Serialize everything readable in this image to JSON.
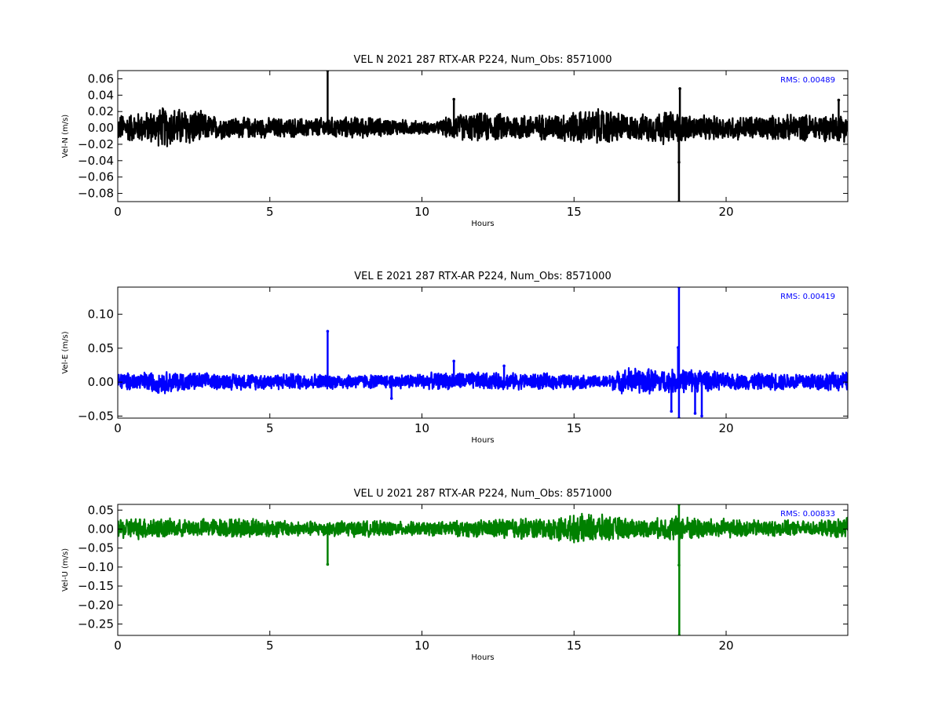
{
  "chart_data": [
    {
      "type": "line",
      "title": "VEL N 2021 287 RTX-AR  P224, Num_Obs: 8571000",
      "xlabel": "Hours",
      "ylabel": "Vel-N (m/s)",
      "xlim": [
        0,
        24
      ],
      "ylim": [
        -0.09,
        0.07
      ],
      "xticks": [
        0,
        5,
        10,
        15,
        20
      ],
      "yticks": [
        -0.08,
        -0.06,
        -0.04,
        -0.02,
        0.0,
        0.02,
        0.04,
        0.06
      ],
      "ytick_labels": [
        "−0.08",
        "−0.06",
        "−0.04",
        "−0.02",
        "0.00",
        "0.02",
        "0.04",
        "0.06"
      ],
      "color": "#000000",
      "rms_text": "RMS:  0.00489",
      "rms_color": "#0000ff",
      "grid": false,
      "envelope": [
        {
          "x": 0.0,
          "lo": -0.018,
          "hi": 0.018
        },
        {
          "x": 1.0,
          "lo": -0.02,
          "hi": 0.022
        },
        {
          "x": 1.5,
          "lo": -0.026,
          "hi": 0.028
        },
        {
          "x": 2.5,
          "lo": -0.024,
          "hi": 0.026
        },
        {
          "x": 3.0,
          "lo": -0.016,
          "hi": 0.017
        },
        {
          "x": 4.0,
          "lo": -0.014,
          "hi": 0.014
        },
        {
          "x": 6.0,
          "lo": -0.013,
          "hi": 0.013
        },
        {
          "x": 8.0,
          "lo": -0.014,
          "hi": 0.015
        },
        {
          "x": 9.0,
          "lo": -0.01,
          "hi": 0.012
        },
        {
          "x": 10.5,
          "lo": -0.008,
          "hi": 0.008
        },
        {
          "x": 11.0,
          "lo": -0.016,
          "hi": 0.018
        },
        {
          "x": 12.0,
          "lo": -0.018,
          "hi": 0.02
        },
        {
          "x": 14.0,
          "lo": -0.016,
          "hi": 0.018
        },
        {
          "x": 16.0,
          "lo": -0.024,
          "hi": 0.026
        },
        {
          "x": 17.0,
          "lo": -0.016,
          "hi": 0.016
        },
        {
          "x": 18.0,
          "lo": -0.022,
          "hi": 0.024
        },
        {
          "x": 19.0,
          "lo": -0.016,
          "hi": 0.016
        },
        {
          "x": 21.0,
          "lo": -0.016,
          "hi": 0.016
        },
        {
          "x": 24.0,
          "lo": -0.018,
          "hi": 0.02
        }
      ],
      "spikes": [
        {
          "x": 6.9,
          "y": 0.07
        },
        {
          "x": 11.05,
          "y": 0.035
        },
        {
          "x": 18.45,
          "y": -0.09
        },
        {
          "x": 18.48,
          "y": 0.048
        },
        {
          "x": 18.45,
          "y": -0.042
        },
        {
          "x": 23.7,
          "y": 0.034
        }
      ]
    },
    {
      "type": "line",
      "title": "VEL E 2021 287 RTX-AR  P224, Num_Obs: 8571000",
      "xlabel": "Hours",
      "ylabel": "Vel-E (m/s)",
      "xlim": [
        0,
        24
      ],
      "ylim": [
        -0.053,
        0.14
      ],
      "xticks": [
        0,
        5,
        10,
        15,
        20
      ],
      "yticks": [
        -0.05,
        0.0,
        0.05,
        0.1
      ],
      "ytick_labels": [
        "−0.05",
        "0.00",
        "0.05",
        "0.10"
      ],
      "color": "#0000ff",
      "rms_text": "RMS:  0.00419",
      "rms_color": "#0000ff",
      "grid": false,
      "envelope": [
        {
          "x": 0.0,
          "lo": -0.012,
          "hi": 0.014
        },
        {
          "x": 1.5,
          "lo": -0.018,
          "hi": 0.018
        },
        {
          "x": 3.0,
          "lo": -0.012,
          "hi": 0.014
        },
        {
          "x": 6.0,
          "lo": -0.012,
          "hi": 0.014
        },
        {
          "x": 9.0,
          "lo": -0.01,
          "hi": 0.012
        },
        {
          "x": 11.0,
          "lo": -0.012,
          "hi": 0.016
        },
        {
          "x": 14.0,
          "lo": -0.012,
          "hi": 0.014
        },
        {
          "x": 16.0,
          "lo": -0.01,
          "hi": 0.01
        },
        {
          "x": 16.8,
          "lo": -0.02,
          "hi": 0.024
        },
        {
          "x": 18.0,
          "lo": -0.018,
          "hi": 0.02
        },
        {
          "x": 19.0,
          "lo": -0.016,
          "hi": 0.022
        },
        {
          "x": 20.0,
          "lo": -0.012,
          "hi": 0.014
        },
        {
          "x": 24.0,
          "lo": -0.014,
          "hi": 0.016
        }
      ],
      "spikes": [
        {
          "x": 6.9,
          "y": 0.075
        },
        {
          "x": 9.0,
          "y": -0.024
        },
        {
          "x": 11.05,
          "y": 0.031
        },
        {
          "x": 12.7,
          "y": 0.024
        },
        {
          "x": 18.2,
          "y": -0.043
        },
        {
          "x": 18.45,
          "y": 0.14
        },
        {
          "x": 18.45,
          "y": -0.053
        },
        {
          "x": 18.42,
          "y": 0.051
        },
        {
          "x": 18.98,
          "y": -0.046
        },
        {
          "x": 19.2,
          "y": -0.05
        }
      ]
    },
    {
      "type": "line",
      "title": "VEL U 2021 287 RTX-AR  P224, Num_Obs: 8571000",
      "xlabel": "Hours",
      "ylabel": "Vel-U (m/s)",
      "xlim": [
        0,
        24
      ],
      "ylim": [
        -0.28,
        0.065
      ],
      "xticks": [
        0,
        5,
        10,
        15,
        20
      ],
      "yticks": [
        -0.25,
        -0.2,
        -0.15,
        -0.1,
        -0.05,
        0.0,
        0.05
      ],
      "ytick_labels": [
        "−0.25",
        "−0.20",
        "−0.15",
        "−0.10",
        "−0.05",
        "0.00",
        "0.05"
      ],
      "color": "#008000",
      "rms_text": "RMS:  0.00833",
      "rms_color": "#0000ff",
      "grid": false,
      "envelope": [
        {
          "x": 0.0,
          "lo": -0.028,
          "hi": 0.03
        },
        {
          "x": 1.0,
          "lo": -0.03,
          "hi": 0.035
        },
        {
          "x": 2.0,
          "lo": -0.022,
          "hi": 0.026
        },
        {
          "x": 3.0,
          "lo": -0.022,
          "hi": 0.03
        },
        {
          "x": 4.5,
          "lo": -0.026,
          "hi": 0.032
        },
        {
          "x": 6.0,
          "lo": -0.02,
          "hi": 0.022
        },
        {
          "x": 8.0,
          "lo": -0.022,
          "hi": 0.024
        },
        {
          "x": 10.0,
          "lo": -0.018,
          "hi": 0.02
        },
        {
          "x": 12.0,
          "lo": -0.024,
          "hi": 0.026
        },
        {
          "x": 13.0,
          "lo": -0.03,
          "hi": 0.034
        },
        {
          "x": 14.0,
          "lo": -0.028,
          "hi": 0.03
        },
        {
          "x": 15.5,
          "lo": -0.042,
          "hi": 0.044
        },
        {
          "x": 16.5,
          "lo": -0.03,
          "hi": 0.034
        },
        {
          "x": 17.5,
          "lo": -0.022,
          "hi": 0.026
        },
        {
          "x": 18.2,
          "lo": -0.034,
          "hi": 0.04
        },
        {
          "x": 19.5,
          "lo": -0.028,
          "hi": 0.03
        },
        {
          "x": 21.0,
          "lo": -0.022,
          "hi": 0.026
        },
        {
          "x": 23.0,
          "lo": -0.018,
          "hi": 0.022
        },
        {
          "x": 24.0,
          "lo": -0.03,
          "hi": 0.034
        }
      ],
      "spikes": [
        {
          "x": 6.9,
          "y": -0.093
        },
        {
          "x": 18.45,
          "y": 0.065
        },
        {
          "x": 18.45,
          "y": -0.095
        },
        {
          "x": 18.46,
          "y": -0.28
        }
      ]
    }
  ]
}
